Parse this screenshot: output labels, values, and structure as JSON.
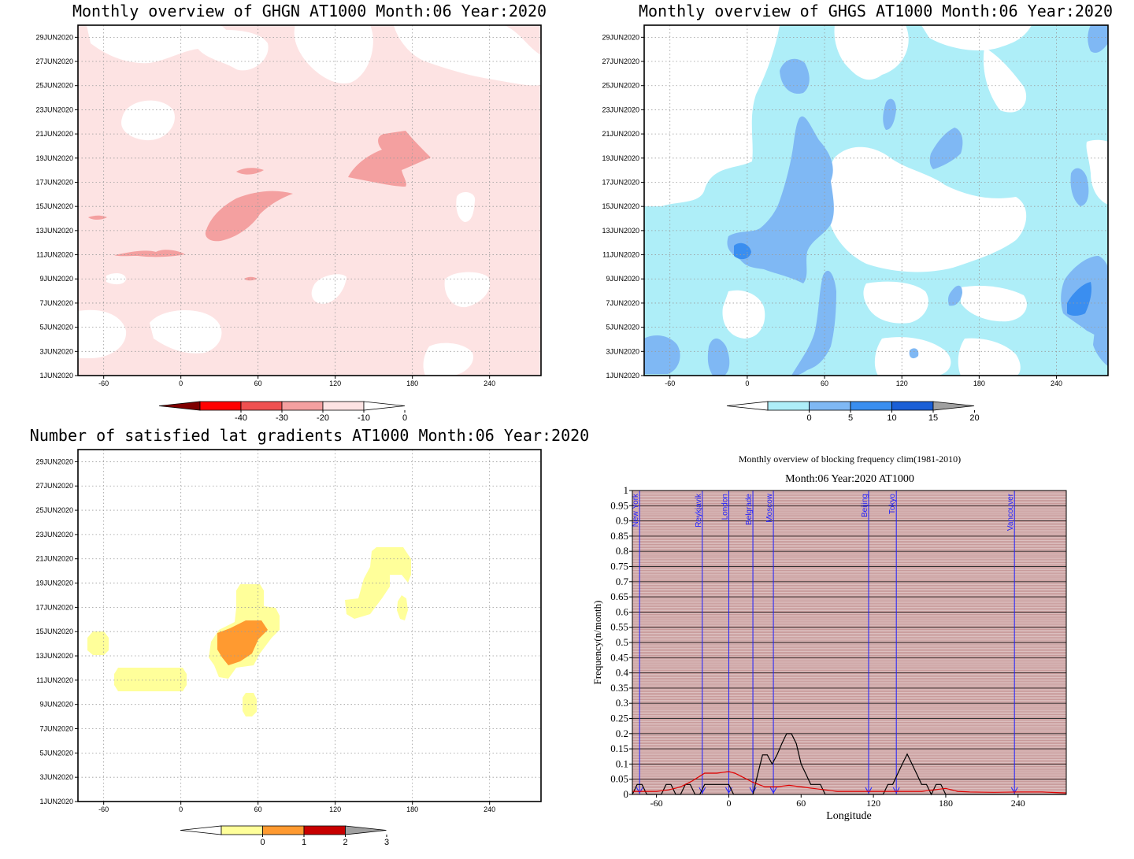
{
  "panels": [
    {
      "title": "Monthly overview of GHGN AT1000 Month:06 Year:2020",
      "y_ticks": [
        "1JUN2020",
        "3JUN2020",
        "5JUN2020",
        "7JUN2020",
        "9JUN2020",
        "11JUN2020",
        "13JUN2020",
        "15JUN2020",
        "17JUN2020",
        "19JUN2020",
        "21JUN2020",
        "23JUN2020",
        "25JUN2020",
        "27JUN2020",
        "29JUN2020"
      ],
      "x_ticks": [
        "-60",
        "0",
        "60",
        "120",
        "180",
        "240"
      ],
      "colorbar": {
        "labels": [
          "-40",
          "-30",
          "-20",
          "-10",
          "0"
        ],
        "colors": [
          "#7f0000",
          "#ff0000",
          "#ef5050",
          "#f4a0a0",
          "#fde3e3",
          "#ffffff"
        ]
      }
    },
    {
      "title": "Monthly overview of GHGS AT1000 Month:06 Year:2020",
      "y_ticks": [
        "1JUN2020",
        "3JUN2020",
        "5JUN2020",
        "7JUN2020",
        "9JUN2020",
        "11JUN2020",
        "13JUN2020",
        "15JUN2020",
        "17JUN2020",
        "19JUN2020",
        "21JUN2020",
        "23JUN2020",
        "25JUN2020",
        "27JUN2020",
        "29JUN2020"
      ],
      "x_ticks": [
        "-60",
        "0",
        "60",
        "120",
        "180",
        "240"
      ],
      "colorbar": {
        "labels": [
          "0",
          "5",
          "10",
          "15",
          "20"
        ],
        "colors": [
          "#ffffff",
          "#aeeef8",
          "#7fb8f4",
          "#3a8ef0",
          "#1a5fd6",
          "#a0a0a0"
        ]
      }
    },
    {
      "title": "Number of satisfied lat gradients AT1000 Month:06 Year:2020",
      "y_ticks": [
        "1JUN2020",
        "3JUN2020",
        "5JUN2020",
        "7JUN2020",
        "9JUN2020",
        "11JUN2020",
        "13JUN2020",
        "15JUN2020",
        "17JUN2020",
        "19JUN2020",
        "21JUN2020",
        "23JUN2020",
        "25JUN2020",
        "27JUN2020",
        "29JUN2020"
      ],
      "x_ticks": [
        "-60",
        "0",
        "60",
        "120",
        "180",
        "240"
      ],
      "colorbar": {
        "labels": [
          "0",
          "1",
          "2",
          "3"
        ],
        "colors": [
          "#ffffff",
          "#ffff9a",
          "#ff9a30",
          "#c80000",
          "#a0a0a0"
        ]
      }
    }
  ],
  "freq": {
    "title_line1": "Monthly overview of blocking frequency clim(1981-2010)",
    "title_line2": "Month:06 Year:2020  AT1000",
    "ylabel": "Frequency(n/month)",
    "xlabel": "Longitude",
    "x_ticks": [
      "-60",
      "0",
      "60",
      "120",
      "180",
      "240"
    ],
    "y_ticks": [
      "0",
      "0.05",
      "0.1",
      "0.15",
      "0.2",
      "0.25",
      "0.3",
      "0.35",
      "0.4",
      "0.45",
      "0.5",
      "0.55",
      "0.6",
      "0.65",
      "0.7",
      "0.75",
      "0.8",
      "0.85",
      "0.9",
      "0.95",
      "1"
    ],
    "cities": [
      {
        "name": "New York",
        "lon": -74
      },
      {
        "name": "Reykjavik",
        "lon": -22
      },
      {
        "name": "London",
        "lon": 0
      },
      {
        "name": "Belgrade",
        "lon": 20
      },
      {
        "name": "Moscow",
        "lon": 37
      },
      {
        "name": "Beijing",
        "lon": 116
      },
      {
        "name": "Tokyo",
        "lon": 139
      },
      {
        "name": "Vancouver",
        "lon": 237
      }
    ],
    "colors": {
      "background": "#c89a9a",
      "city_line": "#2020ff",
      "observed": "#000000",
      "climatology": "#e00000"
    }
  },
  "chart_data": [
    {
      "type": "heatmap",
      "title": "Monthly overview of GHGN AT1000 Month:06 Year:2020",
      "xlim": [
        -80,
        280
      ],
      "ylim": [
        "1JUN2020",
        "30JUN2020"
      ],
      "x_ticks": [
        -60,
        0,
        60,
        120,
        180,
        240
      ],
      "levels": [
        -40,
        -30,
        -20,
        -10,
        0
      ],
      "background_level": "-10 to 0",
      "regions": [
        {
          "level": "0 and above",
          "x": [
            -10,
            15
          ],
          "y": [
            21.5,
            24
          ]
        },
        {
          "level": "0 and above",
          "x": [
            20,
            75
          ],
          "y": [
            25,
            29
          ]
        },
        {
          "level": "0 and above",
          "x": [
            100,
            135
          ],
          "y": [
            25,
            30
          ]
        },
        {
          "level": "0 and above",
          "x": [
            245,
            275
          ],
          "y": [
            24,
            30
          ]
        },
        {
          "level": "0 and above",
          "x": [
            220,
            240
          ],
          "y": [
            14,
            16
          ]
        },
        {
          "level": "0 and above",
          "x": [
            200,
            235
          ],
          "y": [
            7,
            10
          ]
        },
        {
          "level": "0 and above",
          "x": [
            115,
            135
          ],
          "y": [
            7,
            9
          ]
        },
        {
          "level": "0 and above",
          "x": [
            -20,
            20
          ],
          "y": [
            2,
            5
          ]
        },
        {
          "level": "0 and above",
          "x": [
            -60,
            -40
          ],
          "y": [
            9,
            10
          ]
        },
        {
          "level": "-20 to -10",
          "x": [
            20,
            70
          ],
          "y": [
            12.5,
            16
          ]
        },
        {
          "level": "-20 to -10",
          "x": [
            130,
            175
          ],
          "y": [
            16.5,
            21
          ]
        },
        {
          "level": "-20 to -10",
          "x": [
            -50,
            -20
          ],
          "y": [
            10.5,
            11.5
          ]
        }
      ]
    },
    {
      "type": "heatmap",
      "title": "Monthly overview of GHGS AT1000 Month:06 Year:2020",
      "xlim": [
        -80,
        280
      ],
      "ylim": [
        "1JUN2020",
        "30JUN2020"
      ],
      "x_ticks": [
        -60,
        0,
        60,
        120,
        180,
        240
      ],
      "levels": [
        0,
        5,
        10,
        15,
        20
      ],
      "background_level": "0 to 5",
      "regions": [
        {
          "level": "5 to 10",
          "x": [
            -5,
            55
          ],
          "y": [
            8,
            22
          ]
        },
        {
          "level": "5 to 10",
          "x": [
            -80,
            -45
          ],
          "y": [
            1,
            4
          ]
        },
        {
          "level": "5 to 10",
          "x": [
            30,
            65
          ],
          "y": [
            1,
            10
          ]
        },
        {
          "level": "5 to 10",
          "x": [
            140,
            185
          ],
          "y": [
            17,
            20
          ]
        },
        {
          "level": "5 to 10",
          "x": [
            250,
            275
          ],
          "y": [
            3,
            10
          ]
        },
        {
          "level": "5 to 10",
          "x": [
            250,
            270
          ],
          "y": [
            14,
            18
          ]
        },
        {
          "level": "5 to 10",
          "x": [
            25,
            45
          ],
          "y": [
            24,
            26
          ]
        },
        {
          "level": "10 to 15",
          "x": [
            -15,
            0
          ],
          "y": [
            10.5,
            12
          ]
        },
        {
          "level": "10 to 15",
          "x": [
            255,
            270
          ],
          "y": [
            5,
            8
          ]
        },
        {
          "level": "0 and below",
          "x": [
            -75,
            -35
          ],
          "y": [
            12,
            30
          ]
        },
        {
          "level": "0 and below",
          "x": [
            65,
            110
          ],
          "y": [
            10,
            20
          ]
        },
        {
          "level": "0 and below",
          "x": [
            140,
            230
          ],
          "y": [
            24,
            30
          ]
        },
        {
          "level": "0 and below",
          "x": [
            150,
            225
          ],
          "y": [
            5,
            14
          ]
        }
      ]
    },
    {
      "type": "heatmap",
      "title": "Number of satisfied lat gradients AT1000 Month:06 Year:2020",
      "xlim": [
        -80,
        280
      ],
      "ylim": [
        "1JUN2020",
        "30JUN2020"
      ],
      "x_ticks": [
        -60,
        0,
        60,
        120,
        180,
        240
      ],
      "levels": [
        0,
        1,
        2,
        3
      ],
      "background_level": "below 0",
      "regions": [
        {
          "level": "1 to 2",
          "x": [
            -70,
            -55
          ],
          "y": [
            13,
            15
          ]
        },
        {
          "level": "1 to 2",
          "x": [
            -50,
            5
          ],
          "y": [
            10,
            12
          ]
        },
        {
          "level": "1 to 2",
          "x": [
            25,
            75
          ],
          "y": [
            12,
            19
          ]
        },
        {
          "level": "1 to 2",
          "x": [
            50,
            60
          ],
          "y": [
            9,
            10
          ]
        },
        {
          "level": "1 to 2",
          "x": [
            130,
            180
          ],
          "y": [
            16.5,
            22
          ]
        },
        {
          "level": "2 to 3",
          "x": [
            30,
            65
          ],
          "y": [
            12,
            16
          ]
        }
      ]
    },
    {
      "type": "line",
      "title": "Monthly overview of blocking frequency clim(1981-2010)",
      "subtitle": "Month:06 Year:2020  AT1000",
      "xlabel": "Longitude",
      "ylabel": "Frequency(n/month)",
      "xlim": [
        -80,
        280
      ],
      "ylim": [
        0,
        1
      ],
      "grid": true,
      "series": [
        {
          "color": "#000000",
          "x": [
            -80,
            -76,
            -72,
            -68,
            -64,
            -60,
            -56,
            -52,
            -48,
            -44,
            -40,
            -36,
            -32,
            -28,
            -24,
            -20,
            -16,
            -12,
            -8,
            -4,
            0,
            4,
            8,
            12,
            16,
            20,
            24,
            28,
            32,
            36,
            40,
            44,
            48,
            52,
            56,
            60,
            64,
            68,
            72,
            76,
            80,
            84,
            88,
            92,
            96,
            100,
            104,
            108,
            112,
            116,
            120,
            124,
            128,
            132,
            136,
            140,
            144,
            148,
            152,
            156,
            160,
            164,
            168,
            172,
            176,
            180,
            184,
            188,
            192,
            196,
            200,
            220,
            240,
            260,
            280
          ],
          "y": [
            0,
            0.033,
            0.033,
            0,
            0,
            0,
            0,
            0.033,
            0.033,
            0,
            0,
            0.033,
            0.033,
            0,
            0,
            0.033,
            0.033,
            0.033,
            0.033,
            0.033,
            0.033,
            0,
            0,
            0,
            0,
            0,
            0.067,
            0.13,
            0.13,
            0.1,
            0.13,
            0.167,
            0.2,
            0.2,
            0.167,
            0.1,
            0.067,
            0.033,
            0.033,
            0.033,
            0,
            0,
            0,
            0,
            0,
            0,
            0,
            0,
            0,
            0,
            0,
            0,
            0,
            0.033,
            0.033,
            0.067,
            0.1,
            0.133,
            0.1,
            0.067,
            0.033,
            0.033,
            0,
            0.033,
            0.033,
            0,
            0,
            0,
            0,
            0,
            0,
            0,
            0,
            0,
            0
          ]
        },
        {
          "color": "#e00000",
          "x": [
            -80,
            -70,
            -60,
            -50,
            -40,
            -30,
            -20,
            -10,
            0,
            5,
            10,
            20,
            30,
            40,
            50,
            60,
            70,
            80,
            90,
            100,
            110,
            120,
            130,
            140,
            150,
            160,
            170,
            180,
            190,
            200,
            220,
            240,
            260,
            280
          ],
          "y": [
            0.01,
            0.01,
            0.01,
            0.015,
            0.025,
            0.045,
            0.07,
            0.07,
            0.075,
            0.07,
            0.06,
            0.04,
            0.025,
            0.025,
            0.03,
            0.025,
            0.02,
            0.015,
            0.01,
            0.01,
            0.01,
            0.01,
            0.01,
            0.01,
            0.01,
            0.01,
            0.015,
            0.02,
            0.01,
            0.008,
            0.007,
            0.008,
            0.008,
            0.005
          ]
        }
      ]
    }
  ]
}
